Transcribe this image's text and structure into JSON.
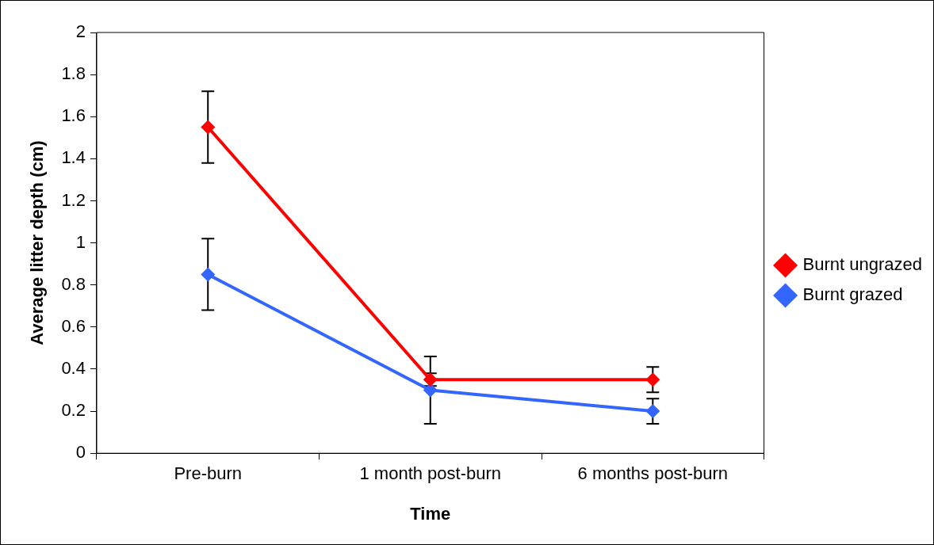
{
  "chart_data": {
    "type": "line",
    "xlabel": "Time",
    "ylabel": "Average litter depth (cm)",
    "categories": [
      "Pre-burn",
      "1 month post-burn",
      "6 months post-burn"
    ],
    "series": [
      {
        "name": "Burnt ungrazed",
        "color": "#ff0000",
        "values": [
          1.55,
          0.35,
          0.35
        ],
        "errors": [
          0.17,
          0.03,
          0.06
        ]
      },
      {
        "name": "Burnt grazed",
        "color": "#3366ff",
        "values": [
          0.85,
          0.3,
          0.2
        ],
        "errors": [
          0.17,
          0.16,
          0.06
        ]
      }
    ],
    "ylim": [
      0,
      2
    ],
    "yticks": [
      0,
      0.2,
      0.4,
      0.6,
      0.8,
      1,
      1.2,
      1.4,
      1.6,
      1.8,
      2
    ],
    "legend": "right",
    "marker": "diamond",
    "line_style": "solid"
  }
}
